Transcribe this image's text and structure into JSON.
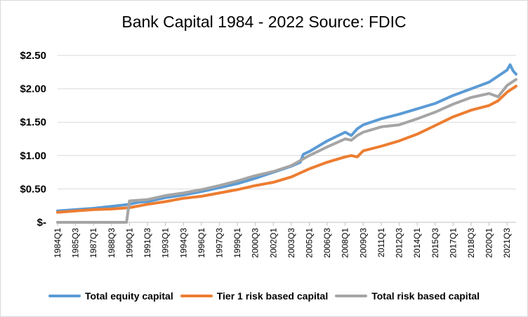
{
  "chart_data": {
    "type": "line",
    "title": "Bank Capital 1984 - 2022 Source: FDIC",
    "xlabel": "",
    "ylabel": "",
    "ylim": [
      0,
      2.5
    ],
    "yticks": [
      0,
      0.5,
      1.0,
      1.5,
      2.0,
      2.5
    ],
    "ytick_labels": [
      "$-",
      "$0.50",
      "$1.00",
      "$1.50",
      "$2.00",
      "$2.50"
    ],
    "x_labels": [
      "1984Q1",
      "1985Q3",
      "1987Q1",
      "1988Q3",
      "1990Q1",
      "1991Q3",
      "1993Q1",
      "1994Q3",
      "1996Q1",
      "1997Q3",
      "1999Q1",
      "2000Q3",
      "2002Q1",
      "2003Q3",
      "2005Q1",
      "2006Q3",
      "2008Q1",
      "2009Q3",
      "2011Q1",
      "2012Q3",
      "2014Q1",
      "2015Q3",
      "2017Q1",
      "2018Q3",
      "2020Q1",
      "2021Q3"
    ],
    "x_range": [
      "1984Q1",
      "2022Q2"
    ],
    "grid": true,
    "legend_position": "bottom",
    "series": [
      {
        "name": "Total equity capital",
        "color": "#5b9bd5",
        "points": [
          [
            "1984Q1",
            0.17
          ],
          [
            "1985Q3",
            0.19
          ],
          [
            "1987Q1",
            0.21
          ],
          [
            "1988Q3",
            0.24
          ],
          [
            "1990Q1",
            0.27
          ],
          [
            "1990Q4",
            0.3
          ],
          [
            "1991Q3",
            0.31
          ],
          [
            "1993Q1",
            0.37
          ],
          [
            "1994Q3",
            0.41
          ],
          [
            "1996Q1",
            0.46
          ],
          [
            "1997Q3",
            0.52
          ],
          [
            "1999Q1",
            0.58
          ],
          [
            "2000Q3",
            0.66
          ],
          [
            "2002Q1",
            0.75
          ],
          [
            "2003Q3",
            0.84
          ],
          [
            "2004Q2",
            0.9
          ],
          [
            "2004Q3",
            1.02
          ],
          [
            "2005Q1",
            1.06
          ],
          [
            "2006Q3",
            1.22
          ],
          [
            "2008Q1",
            1.35
          ],
          [
            "2008Q3",
            1.3
          ],
          [
            "2009Q1",
            1.4
          ],
          [
            "2009Q3",
            1.46
          ],
          [
            "2011Q1",
            1.55
          ],
          [
            "2012Q3",
            1.62
          ],
          [
            "2014Q1",
            1.7
          ],
          [
            "2015Q3",
            1.78
          ],
          [
            "2017Q1",
            1.9
          ],
          [
            "2018Q3",
            2.0
          ],
          [
            "2020Q1",
            2.1
          ],
          [
            "2021Q3",
            2.28
          ],
          [
            "2021Q4",
            2.36
          ],
          [
            "2022Q1",
            2.27
          ],
          [
            "2022Q2",
            2.22
          ]
        ]
      },
      {
        "name": "Tier 1 risk based capital",
        "color": "#ed7d31",
        "points": [
          [
            "1984Q1",
            0.15
          ],
          [
            "1985Q3",
            0.17
          ],
          [
            "1987Q1",
            0.19
          ],
          [
            "1988Q3",
            0.2
          ],
          [
            "1990Q1",
            0.22
          ],
          [
            "1991Q3",
            0.27
          ],
          [
            "1993Q1",
            0.31
          ],
          [
            "1994Q3",
            0.36
          ],
          [
            "1996Q1",
            0.39
          ],
          [
            "1997Q3",
            0.44
          ],
          [
            "1999Q1",
            0.49
          ],
          [
            "2000Q3",
            0.55
          ],
          [
            "2002Q1",
            0.6
          ],
          [
            "2003Q3",
            0.68
          ],
          [
            "2005Q1",
            0.8
          ],
          [
            "2006Q3",
            0.9
          ],
          [
            "2008Q1",
            0.98
          ],
          [
            "2008Q3",
            1.0
          ],
          [
            "2009Q1",
            0.98
          ],
          [
            "2009Q3",
            1.07
          ],
          [
            "2011Q1",
            1.14
          ],
          [
            "2012Q3",
            1.22
          ],
          [
            "2014Q1",
            1.32
          ],
          [
            "2015Q3",
            1.45
          ],
          [
            "2017Q1",
            1.58
          ],
          [
            "2018Q3",
            1.68
          ],
          [
            "2020Q1",
            1.75
          ],
          [
            "2020Q4",
            1.82
          ],
          [
            "2021Q3",
            1.95
          ],
          [
            "2022Q2",
            2.04
          ]
        ]
      },
      {
        "name": "Total risk based capital",
        "color": "#a5a5a5",
        "points": [
          [
            "1984Q1",
            0.0
          ],
          [
            "1985Q3",
            0.0
          ],
          [
            "1987Q1",
            0.0
          ],
          [
            "1988Q3",
            0.0
          ],
          [
            "1989Q4",
            0.0
          ],
          [
            "1990Q1",
            0.32
          ],
          [
            "1991Q3",
            0.34
          ],
          [
            "1993Q1",
            0.4
          ],
          [
            "1994Q3",
            0.44
          ],
          [
            "1996Q1",
            0.49
          ],
          [
            "1997Q3",
            0.55
          ],
          [
            "1999Q1",
            0.62
          ],
          [
            "2000Q3",
            0.7
          ],
          [
            "2002Q1",
            0.76
          ],
          [
            "2003Q3",
            0.85
          ],
          [
            "2005Q1",
            1.0
          ],
          [
            "2006Q3",
            1.13
          ],
          [
            "2008Q1",
            1.25
          ],
          [
            "2008Q3",
            1.23
          ],
          [
            "2009Q1",
            1.3
          ],
          [
            "2009Q3",
            1.35
          ],
          [
            "2011Q1",
            1.43
          ],
          [
            "2012Q3",
            1.46
          ],
          [
            "2014Q1",
            1.55
          ],
          [
            "2015Q3",
            1.65
          ],
          [
            "2017Q1",
            1.77
          ],
          [
            "2018Q3",
            1.87
          ],
          [
            "2020Q1",
            1.93
          ],
          [
            "2020Q4",
            1.88
          ],
          [
            "2021Q3",
            2.05
          ],
          [
            "2022Q2",
            2.14
          ]
        ]
      }
    ]
  }
}
